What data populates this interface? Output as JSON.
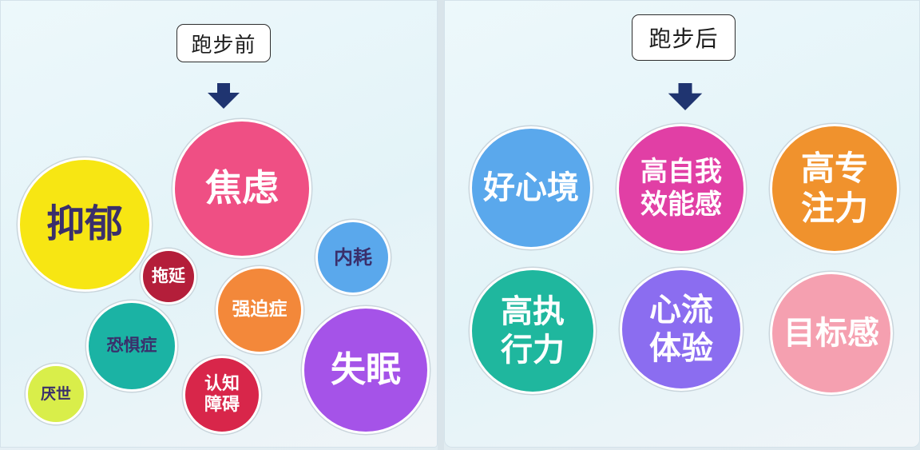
{
  "before": {
    "label": "跑步前",
    "items": {
      "depression": "抑郁",
      "anxiety": "焦虑",
      "procrastination": "拖延",
      "internal_friction": "内耗",
      "ocd": "强迫症",
      "phobia": "恐惧症",
      "insomnia": "失眠",
      "world_weary": "厌世",
      "cognitive_line1": "认知",
      "cognitive_line2": "障碍"
    }
  },
  "after": {
    "label": "跑步后",
    "items": {
      "good_mood": "好心境",
      "self_efficacy_line1": "高自我",
      "self_efficacy_line2": "效能感",
      "focus_line1": "高专",
      "focus_line2": "注力",
      "execution_line1": "高执",
      "execution_line2": "行力",
      "flow_line1": "心流",
      "flow_line2": "体验",
      "goal_sense": "目标感"
    }
  },
  "colors": {
    "yellow": "#f7e613",
    "pink": "#ef4f84",
    "crimson": "#b41e3a",
    "sky": "#5aa8ec",
    "orange": "#f3883a",
    "teal": "#1bb3a4",
    "purple": "#a553e8",
    "lime": "#d9ee4a",
    "red": "#d8264a",
    "magenta": "#e13fa5",
    "amber": "#f0922d",
    "green": "#1fb79e",
    "violet": "#8b6df0",
    "rose": "#f5a0b0",
    "arrow": "#1f3470"
  },
  "icons": {
    "arrow": "arrow-down-icon"
  }
}
